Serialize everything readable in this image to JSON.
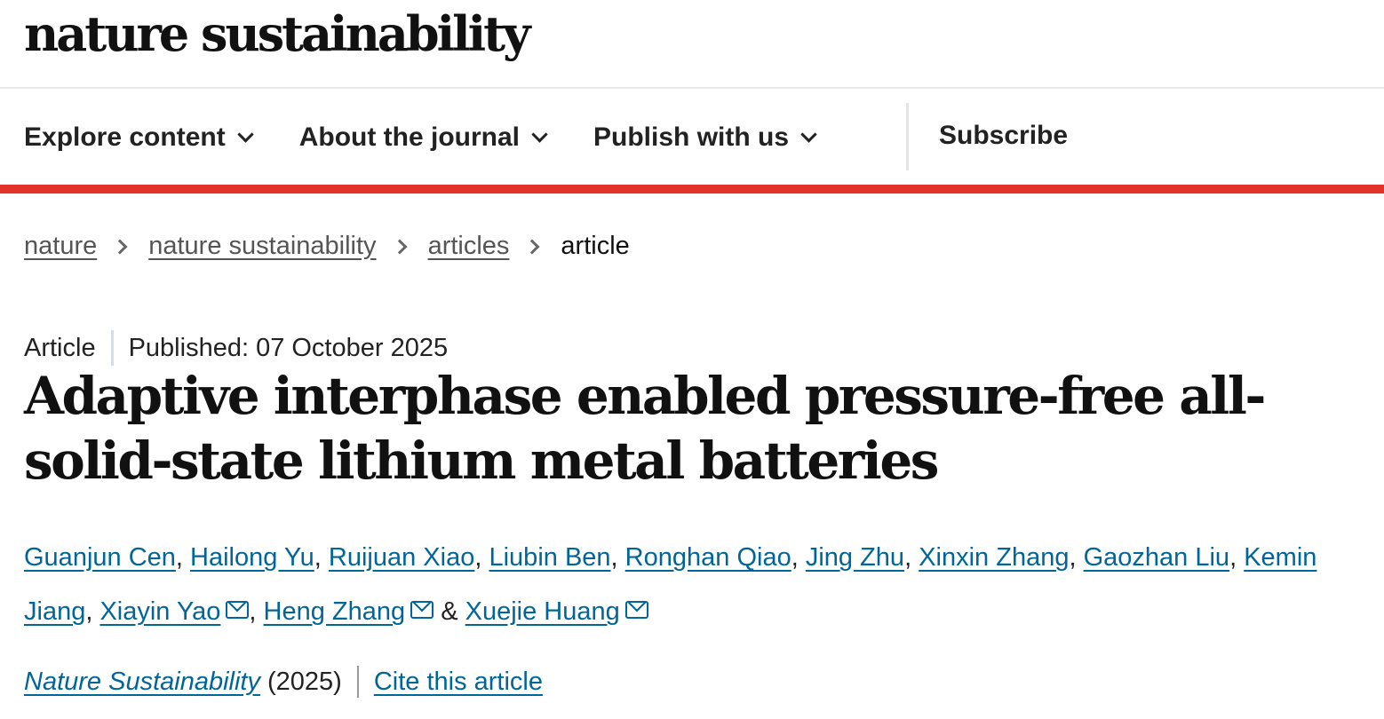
{
  "header": {
    "logo": "nature sustainability"
  },
  "nav": {
    "items": [
      {
        "label": "Explore content"
      },
      {
        "label": "About the journal"
      },
      {
        "label": "Publish with us"
      }
    ],
    "subscribe": "Subscribe"
  },
  "colors": {
    "accent": "#e2332b",
    "link": "#006699"
  },
  "breadcrumb": [
    "nature",
    "nature sustainability",
    "articles",
    "article"
  ],
  "article": {
    "type": "Article",
    "published": "Published: 07 October 2025",
    "title": "Adaptive interphase enabled pressure-free all-solid-state lithium metal batteries",
    "authors": [
      {
        "name": "Guanjun Cen"
      },
      {
        "name": "Hailong Yu"
      },
      {
        "name": "Ruijuan Xiao"
      },
      {
        "name": "Liubin Ben"
      },
      {
        "name": "Ronghan Qiao"
      },
      {
        "name": "Jing Zhu"
      },
      {
        "name": "Xinxin Zhang"
      },
      {
        "name": "Gaozhan Liu"
      },
      {
        "name": "Kemin Jiang"
      },
      {
        "name": "Xiayin Yao",
        "email": true
      },
      {
        "name": "Heng Zhang",
        "email": true
      },
      {
        "name": "Xuejie Huang",
        "email": true
      }
    ],
    "journal": "Nature Sustainability",
    "year": "(2025)",
    "cite": "Cite this article"
  }
}
